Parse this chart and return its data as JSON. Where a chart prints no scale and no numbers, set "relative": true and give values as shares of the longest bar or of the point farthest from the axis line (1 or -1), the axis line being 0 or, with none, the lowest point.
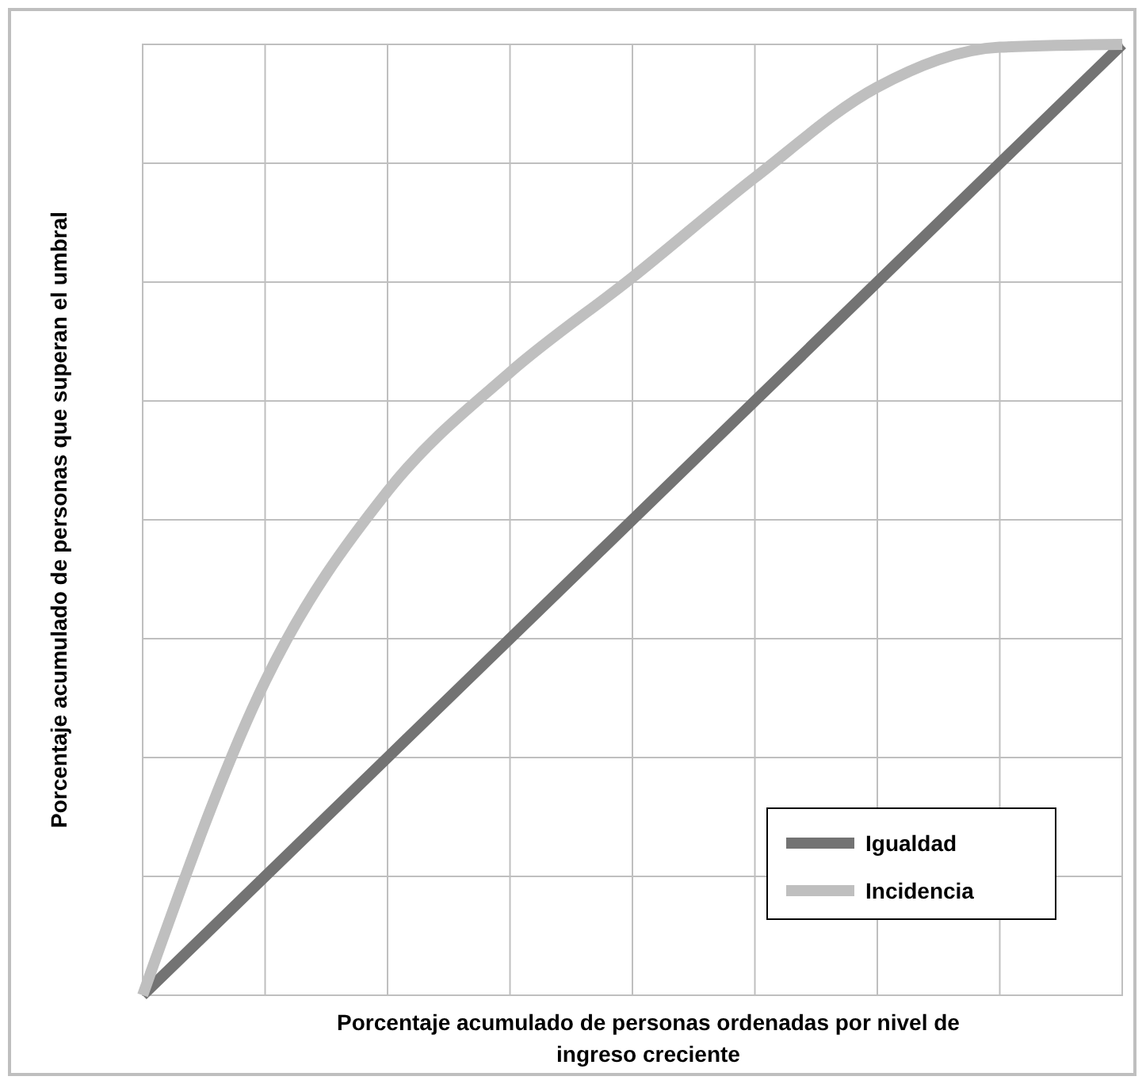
{
  "chart_data": {
    "type": "line",
    "relative": true,
    "xlabel": "Porcentaje acumulado de personas ordenadas por nivel de ingreso creciente",
    "ylabel": "Porcentaje acumulado de personas que superan el umbral",
    "categories": [
      null,
      null,
      null,
      null,
      null,
      null,
      null,
      null,
      null
    ],
    "series": [
      {
        "name": "Igualdad",
        "color": "#737373",
        "values": [
          0,
          0.125,
          0.25,
          0.375,
          0.5,
          0.625,
          0.75,
          0.875,
          1
        ]
      },
      {
        "name": "Incidencia",
        "color": "#bfbfbf",
        "values": [
          0,
          0.33,
          0.53,
          0.655,
          0.755,
          0.86,
          0.955,
          0.997,
          1
        ]
      }
    ],
    "grid": true,
    "legend": "bottom right",
    "marker": "none",
    "line_style": "solid"
  }
}
